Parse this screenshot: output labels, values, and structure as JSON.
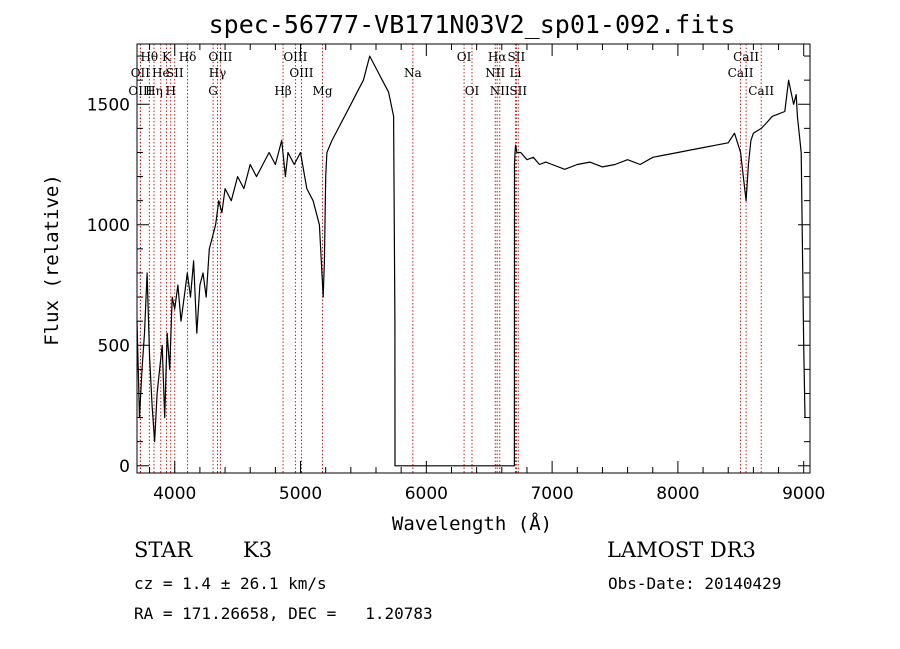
{
  "chart_data": {
    "type": "line",
    "title": "spec-56777-VB171N03V2_sp01-092.fits",
    "xlabel": "Wavelength (Å)",
    "ylabel": "Flux (relative)",
    "xlim": [
      3700,
      9050
    ],
    "ylim": [
      -30,
      1750
    ],
    "x_ticks": [
      4000,
      5000,
      6000,
      7000,
      8000,
      9000
    ],
    "y_ticks": [
      0,
      500,
      1000,
      1500
    ],
    "series": [
      {
        "x": [
          3700,
          3720,
          3740,
          3760,
          3780,
          3800,
          3820,
          3840,
          3860,
          3880,
          3900,
          3920,
          3940,
          3960,
          3980,
          4000,
          4025,
          4050,
          4075,
          4100,
          4125,
          4150,
          4175,
          4200,
          4225,
          4250,
          4275,
          4300,
          4325,
          4350,
          4375,
          4400,
          4450,
          4500,
          4550,
          4600,
          4650,
          4700,
          4750,
          4800,
          4850,
          4880,
          4900,
          4950,
          5000,
          5050,
          5100,
          5150,
          5180,
          5190,
          5200,
          5210,
          5250,
          5300,
          5350,
          5400,
          5450,
          5500,
          5550,
          5600,
          5650,
          5700,
          5740,
          5750,
          5751,
          5760,
          6700,
          6701,
          6705,
          6710,
          6720,
          6750,
          6800,
          6850,
          6900,
          6950,
          7000,
          7100,
          7200,
          7300,
          7400,
          7500,
          7600,
          7700,
          7800,
          7900,
          8000,
          8100,
          8200,
          8300,
          8400,
          8450,
          8498,
          8520,
          8542,
          8560,
          8580,
          8600,
          8662,
          8700,
          8750,
          8800,
          8850,
          8880,
          8900,
          8920,
          8940,
          8950,
          8980,
          9000,
          9010
        ],
        "y": [
          600,
          200,
          400,
          550,
          800,
          450,
          250,
          100,
          300,
          400,
          500,
          200,
          550,
          400,
          700,
          650,
          750,
          600,
          700,
          800,
          700,
          850,
          550,
          750,
          800,
          700,
          900,
          950,
          1000,
          1100,
          1050,
          1150,
          1100,
          1200,
          1150,
          1250,
          1200,
          1250,
          1300,
          1250,
          1350,
          1200,
          1300,
          1250,
          1300,
          1150,
          1100,
          1000,
          700,
          850,
          1200,
          1300,
          1350,
          1400,
          1450,
          1500,
          1550,
          1600,
          1700,
          1650,
          1600,
          1550,
          1450,
          600,
          0,
          0,
          0,
          1250,
          1300,
          1330,
          1300,
          1300,
          1270,
          1280,
          1250,
          1260,
          1250,
          1230,
          1250,
          1260,
          1240,
          1250,
          1270,
          1250,
          1280,
          1290,
          1300,
          1310,
          1320,
          1330,
          1340,
          1380,
          1300,
          1200,
          1100,
          1250,
          1350,
          1380,
          1400,
          1420,
          1450,
          1460,
          1470,
          1600,
          1550,
          1500,
          1540,
          1450,
          1300,
          500,
          200
        ]
      }
    ],
    "line_labels": [
      {
        "label": "Hθ",
        "x": 3798,
        "row": 1
      },
      {
        "label": "OII",
        "x": 3727,
        "row": 2
      },
      {
        "label": "OIII",
        "x": 3727,
        "row": 3
      },
      {
        "label": "He",
        "x": 3889,
        "row": 2
      },
      {
        "label": "Hη",
        "x": 3835,
        "row": 3
      },
      {
        "label": "K",
        "x": 3934,
        "row": 1
      },
      {
        "label": "SII",
        "x": 4000,
        "row": 2
      },
      {
        "label": "H",
        "x": 3968,
        "row": 3
      },
      {
        "label": "Hδ",
        "x": 4102,
        "row": 1
      },
      {
        "label": "OIII",
        "x": 4363,
        "row": 1
      },
      {
        "label": "Hγ",
        "x": 4340,
        "row": 2
      },
      {
        "label": "G",
        "x": 4305,
        "row": 3
      },
      {
        "label": "OIII",
        "x": 4959,
        "row": 1
      },
      {
        "label": "OIII",
        "x": 5007,
        "row": 2
      },
      {
        "label": "Hβ",
        "x": 4861,
        "row": 3
      },
      {
        "label": "Mg",
        "x": 5175,
        "row": 3
      },
      {
        "label": "Na",
        "x": 5893,
        "row": 2
      },
      {
        "label": "OI",
        "x": 6300,
        "row": 1
      },
      {
        "label": "OI",
        "x": 6363,
        "row": 3
      },
      {
        "label": "Hα",
        "x": 6563,
        "row": 1
      },
      {
        "label": "SII",
        "x": 6716,
        "row": 1
      },
      {
        "label": "NII",
        "x": 6548,
        "row": 2
      },
      {
        "label": "Li",
        "x": 6708,
        "row": 2
      },
      {
        "label": "NII",
        "x": 6584,
        "row": 3
      },
      {
        "label": "SII",
        "x": 6731,
        "row": 3
      },
      {
        "label": "CaII",
        "x": 8542,
        "row": 1
      },
      {
        "label": "CaII",
        "x": 8498,
        "row": 2
      },
      {
        "label": "CaII",
        "x": 8662,
        "row": 3
      }
    ]
  },
  "footer": {
    "object_class": "STAR",
    "subclass": "K3",
    "redshift": "cz = 1.4 ± 26.1 km/s",
    "coordinates": "RA = 171.26658, DEC =   1.20783",
    "survey": "LAMOST DR3",
    "obs_date": "Obs-Date: 20140429"
  },
  "colors": {
    "spectrum": "#000000",
    "line_markers": "#cc0000",
    "axes": "#000000",
    "background": "#ffffff"
  }
}
